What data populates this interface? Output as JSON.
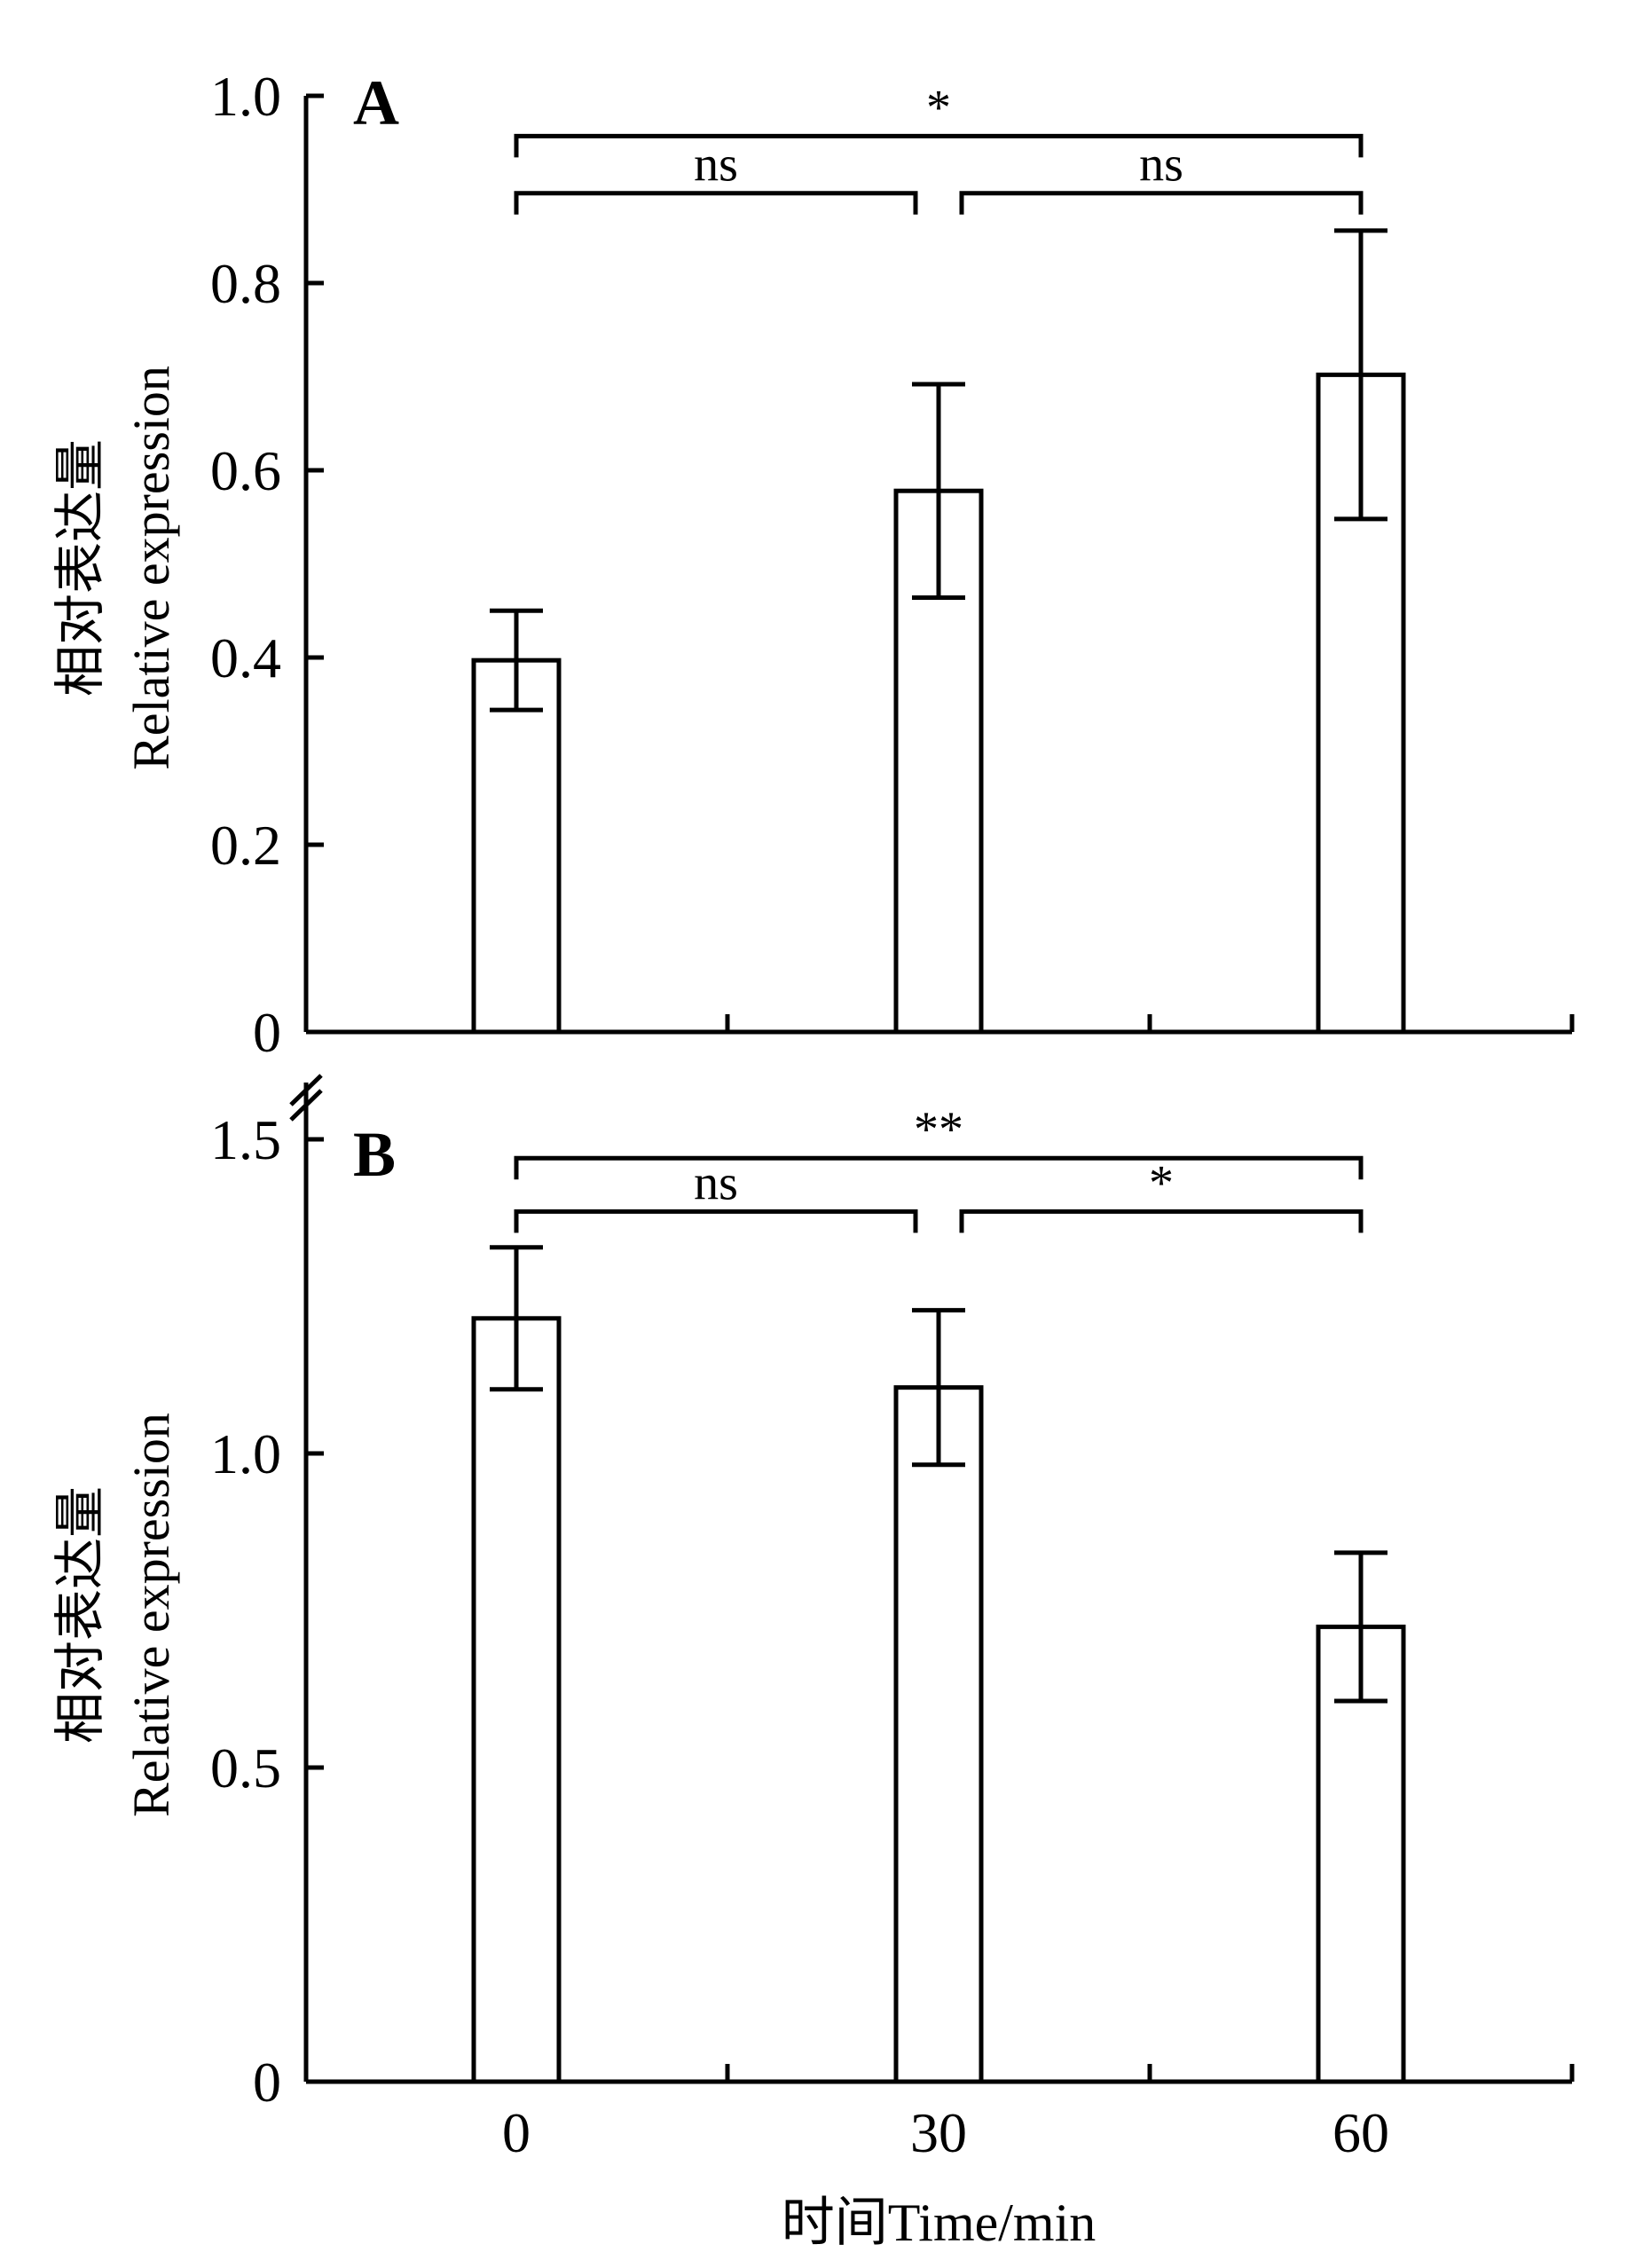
{
  "chart_data": [
    {
      "type": "bar",
      "panel": "A",
      "categories": [
        "0",
        "30",
        "60"
      ],
      "values": [
        0.397,
        0.578,
        0.702
      ],
      "errors": [
        0.053,
        0.114,
        0.154
      ],
      "ylim": [
        0,
        1.0
      ],
      "yticks": [
        0,
        0.2,
        0.4,
        0.6,
        0.8,
        1.0
      ],
      "ytick_labels": [
        "0",
        "0.2",
        "0.4",
        "0.6",
        "0.8",
        "1.0"
      ],
      "ylabel_cn": "相对表达量",
      "ylabel_en": "Relative expression",
      "xlabel": "",
      "significance": [
        {
          "from": 0,
          "to": 2,
          "label": "*",
          "level": 0.957
        },
        {
          "from": 0,
          "to": 1,
          "label": "ns",
          "level": 0.896
        },
        {
          "from": 1,
          "to": 2,
          "label": "ns",
          "level": 0.896
        }
      ]
    },
    {
      "type": "bar",
      "panel": "B",
      "categories": [
        "0",
        "30",
        "60"
      ],
      "values": [
        1.215,
        1.105,
        0.724
      ],
      "errors": [
        0.113,
        0.123,
        0.118
      ],
      "ylim": [
        0,
        1.5
      ],
      "yticks": [
        0,
        0.5,
        1.0,
        1.5
      ],
      "ytick_labels": [
        "0",
        "0.5",
        "1.0",
        "1.5"
      ],
      "ylabel_cn": "相对表达量",
      "ylabel_en": "Relative expression",
      "xlabel": "时间Time/min",
      "significance": [
        {
          "from": 0,
          "to": 2,
          "label": "**",
          "level": 1.47
        },
        {
          "from": 0,
          "to": 1,
          "label": "ns",
          "level": 1.385
        },
        {
          "from": 1,
          "to": 2,
          "label": "*",
          "level": 1.385
        }
      ]
    }
  ]
}
